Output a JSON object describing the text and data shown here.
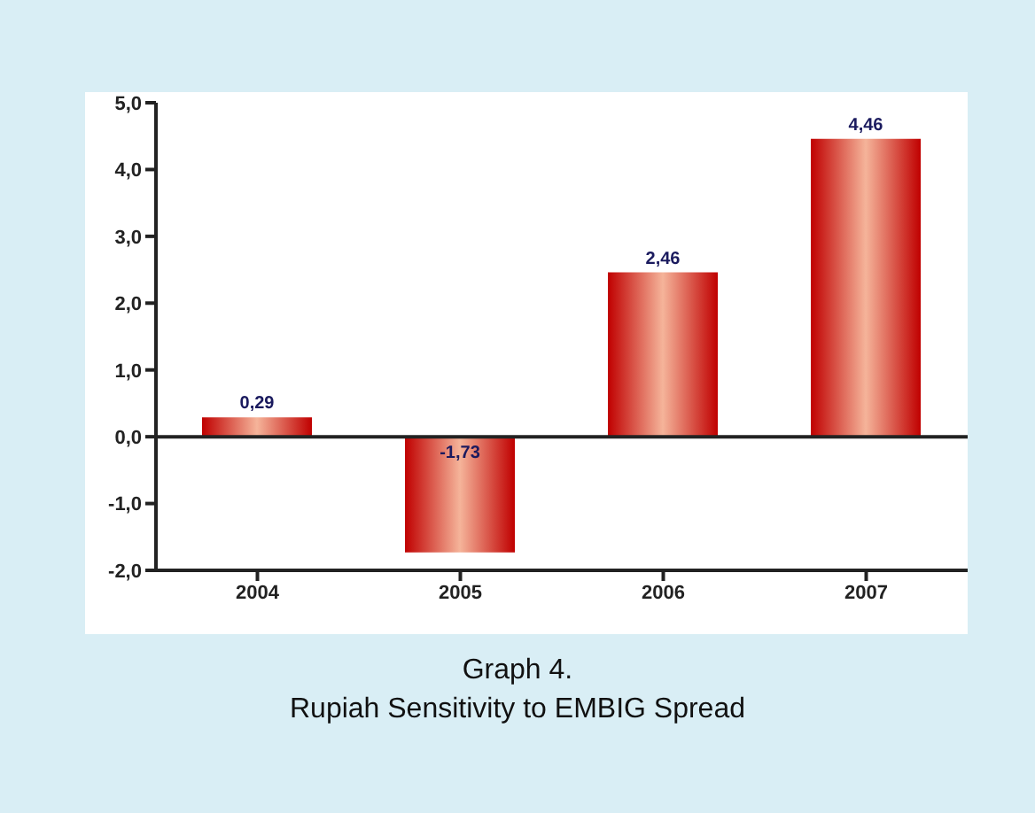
{
  "chart_data": {
    "type": "bar",
    "title": "Graph 4.",
    "subtitle": "Rupiah Sensitivity to EMBIG Spread",
    "categories": [
      "2004",
      "2005",
      "2006",
      "2007"
    ],
    "values": [
      0.29,
      -1.73,
      2.46,
      4.46
    ],
    "color": "#c00000",
    "value_labels": [
      "0,29",
      "-1,73",
      "2,46",
      "4,46"
    ],
    "ylim": [
      -2,
      5
    ],
    "yticks": [
      {
        "value": 5,
        "label": "5,0"
      },
      {
        "value": 4,
        "label": "4,0"
      },
      {
        "value": 3,
        "label": "3,0"
      },
      {
        "value": 2,
        "label": "2,0"
      },
      {
        "value": 1,
        "label": "1,0"
      },
      {
        "value": 0,
        "label": "0,0"
      },
      {
        "value": -1,
        "label": "-1,0"
      },
      {
        "value": -2,
        "label": "-2,0"
      }
    ],
    "ylabel": null
  }
}
